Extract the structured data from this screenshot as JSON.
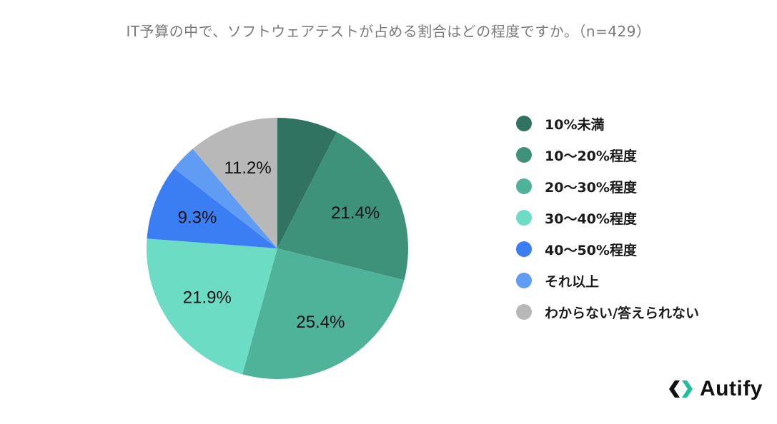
{
  "chart_data": {
    "type": "pie",
    "title": "IT予算の中で、ソフトウェアテストが占める割合はどの程度ですか。（n=429）",
    "slices": [
      {
        "label": "10%未満",
        "value": 7.5,
        "display": "",
        "color": "#2f7360"
      },
      {
        "label": "10〜20%程度",
        "value": 21.4,
        "display": "21.4%",
        "color": "#3e927a"
      },
      {
        "label": "20〜30%程度",
        "value": 25.4,
        "display": "25.4%",
        "color": "#4fb39a"
      },
      {
        "label": "30〜40%程度",
        "value": 21.9,
        "display": "21.9%",
        "color": "#6ddcc4"
      },
      {
        "label": "40〜50%程度",
        "value": 9.3,
        "display": "9.3%",
        "color": "#3b7df2"
      },
      {
        "label": "それ以上",
        "value": 3.3,
        "display": "",
        "color": "#619cf4"
      },
      {
        "label": "わからない/答えられない",
        "value": 11.2,
        "display": "11.2%",
        "color": "#b8b8b8"
      }
    ],
    "start_angle_deg": 0,
    "direction": "clockwise",
    "legend_position": "right"
  },
  "brand": {
    "name": "Autify",
    "color": "#1fbf9a"
  }
}
